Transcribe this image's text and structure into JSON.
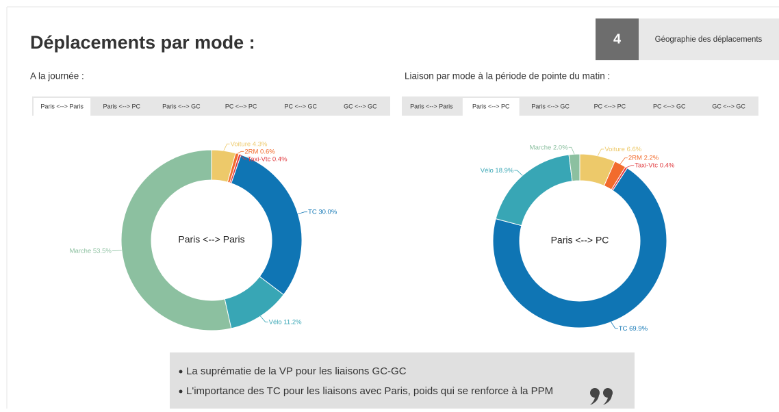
{
  "header": {
    "title": "Déplacements par mode :",
    "section_number": "4",
    "section_label": "Géographie des déplacements"
  },
  "chart_data": [
    {
      "type": "pie",
      "subtitle": "A la journée :",
      "tabs": [
        "Paris <--> Paris",
        "Paris <--> PC",
        "Paris <--> GC",
        "PC <--> PC",
        "PC <--> GC",
        "GC <--> GC"
      ],
      "selected_tab": 0,
      "center_label": "Paris <--> Paris",
      "categories": [
        "Voiture",
        "2RM",
        "Taxi-Vtc",
        "TC",
        "Vélo",
        "Marche"
      ],
      "values": [
        4.3,
        0.6,
        0.4,
        30.0,
        11.2,
        53.5
      ],
      "value_labels": [
        "4.3%",
        "0.6%",
        "0.4%",
        "30.0%",
        "11.2%",
        "53.5%"
      ],
      "colors": [
        "#edc96a",
        "#f26b2c",
        "#e0393e",
        "#0f75b4",
        "#38a6b5",
        "#8cc0a0"
      ]
    },
    {
      "type": "pie",
      "subtitle": "Liaison par mode à la période de pointe du matin :",
      "tabs": [
        "Paris <--> Paris",
        "Paris <--> PC",
        "Paris <--> GC",
        "PC <--> PC",
        "PC <--> GC",
        "GC <--> GC"
      ],
      "selected_tab": 1,
      "center_label": "Paris <--> PC",
      "categories": [
        "Voiture",
        "2RM",
        "Taxi-Vtc",
        "TC",
        "Vélo",
        "Marche"
      ],
      "values": [
        6.6,
        2.2,
        0.4,
        69.9,
        18.9,
        2.0
      ],
      "value_labels": [
        "6.6%",
        "2.2%",
        "0.4%",
        "69.9%",
        "18.9%",
        "2.0%"
      ],
      "colors": [
        "#edc96a",
        "#f26b2c",
        "#e0393e",
        "#0f75b4",
        "#38a6b5",
        "#8cc0a0"
      ]
    }
  ],
  "notes": [
    "La suprématie de la VP pour les liaisons GC-GC",
    "L'importance des TC pour les liaisons avec Paris, poids qui se renforce à la PPM"
  ]
}
